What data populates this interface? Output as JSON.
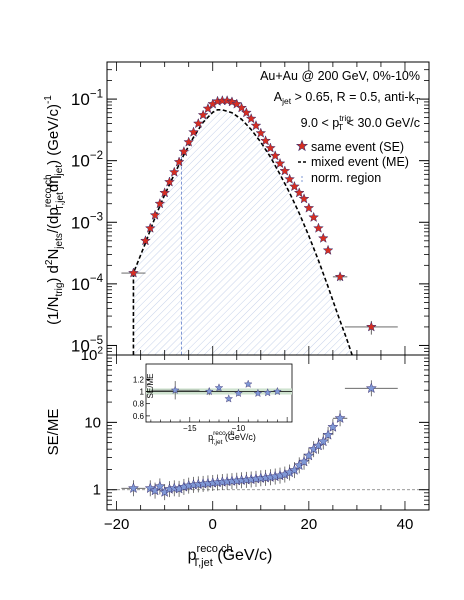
{
  "chart_data": [
    {
      "type": "scatter",
      "panel": "top",
      "yscale": "log",
      "ylim": [
        7e-06,
        0.4
      ],
      "xlim": [
        -22,
        45
      ],
      "ylabel_parts": {
        "p1": "(1/N",
        "p1_sub": "trig",
        "p2": ") d",
        "p2_sup": "2",
        "p3": "N",
        "p3_sub": "jets",
        "p4": "/(dp",
        "p4_sup": "reco,ch",
        "p4_sub": "T,jet",
        "p5": "dη",
        "p5_sub": "jet",
        "p6": ")  (GeV/c)",
        "p6_sup": "-1"
      },
      "yticks": [
        {
          "v": 1e-05,
          "base": "10",
          "exp": "−5"
        },
        {
          "v": 0.0001,
          "base": "10",
          "exp": "−4"
        },
        {
          "v": 0.001,
          "base": "10",
          "exp": "−3"
        },
        {
          "v": 0.01,
          "base": "10",
          "exp": "−2"
        },
        {
          "v": 0.1,
          "base": "10",
          "exp": "−1"
        }
      ],
      "annotations": {
        "line1": "Au+Au @ 200 GeV, 0%-10%",
        "line2_a": "A",
        "line2_a_sub": "jet",
        "line2_b": " > 0.65, R = 0.5, anti-k",
        "line2_b_sub": "T",
        "line3_a": "9.0 < p",
        "line3_a_sup": "trig",
        "line3_a_sub": "T",
        "line3_b": " < 30.0 GeV/c"
      },
      "legend": [
        {
          "label": "same event (SE)",
          "marker": "star-red"
        },
        {
          "label": "mixed event (ME)",
          "marker": "dashed-black"
        },
        {
          "label": "norm. region",
          "marker": "hatch-blue"
        }
      ],
      "norm_region": [
        -17,
        -6.5
      ],
      "se_points": [
        {
          "x": -16.5,
          "y": 0.00015,
          "xerr": 2.5,
          "yerr_rel": 0.12
        },
        {
          "x": -14,
          "y": 0.0005
        },
        {
          "x": -13,
          "y": 0.0008
        },
        {
          "x": -12,
          "y": 0.0013
        },
        {
          "x": -11,
          "y": 0.002
        },
        {
          "x": -10,
          "y": 0.003
        },
        {
          "x": -9,
          "y": 0.0045
        },
        {
          "x": -8,
          "y": 0.0065
        },
        {
          "x": -7,
          "y": 0.0095
        },
        {
          "x": -6,
          "y": 0.014
        },
        {
          "x": -5,
          "y": 0.02
        },
        {
          "x": -4,
          "y": 0.029
        },
        {
          "x": -3,
          "y": 0.04
        },
        {
          "x": -2,
          "y": 0.055
        },
        {
          "x": -1,
          "y": 0.07
        },
        {
          "x": 0,
          "y": 0.083
        },
        {
          "x": 1,
          "y": 0.092
        },
        {
          "x": 2,
          "y": 0.094
        },
        {
          "x": 3,
          "y": 0.094
        },
        {
          "x": 4,
          "y": 0.09
        },
        {
          "x": 5,
          "y": 0.083
        },
        {
          "x": 6,
          "y": 0.072
        },
        {
          "x": 7,
          "y": 0.06
        },
        {
          "x": 8,
          "y": 0.048
        },
        {
          "x": 9,
          "y": 0.037
        },
        {
          "x": 10,
          "y": 0.028
        },
        {
          "x": 11,
          "y": 0.021
        },
        {
          "x": 12,
          "y": 0.016
        },
        {
          "x": 13,
          "y": 0.012
        },
        {
          "x": 14,
          "y": 0.009
        },
        {
          "x": 15,
          "y": 0.0068
        },
        {
          "x": 16,
          "y": 0.005
        },
        {
          "x": 17,
          "y": 0.0038
        },
        {
          "x": 18,
          "y": 0.003
        },
        {
          "x": 19,
          "y": 0.0024
        },
        {
          "x": 20,
          "y": 0.0017
        },
        {
          "x": 21,
          "y": 0.0012
        },
        {
          "x": 22,
          "y": 0.0008
        },
        {
          "x": 23,
          "y": 0.00055
        },
        {
          "x": 24,
          "y": 0.00035
        },
        {
          "x": 26.5,
          "y": 0.00013,
          "xerr": 1.5,
          "yerr_rel": 0.15
        },
        {
          "x": 33,
          "y": 2e-05,
          "xerr": 5.5,
          "yerr_rel": 0.25
        }
      ],
      "me_curve": [
        {
          "x": -16.5,
          "y": 7e-06
        },
        {
          "x": -16.5,
          "y": 0.00015
        },
        {
          "x": -14,
          "y": 0.00046
        },
        {
          "x": -12,
          "y": 0.0012
        },
        {
          "x": -10,
          "y": 0.0028
        },
        {
          "x": -8,
          "y": 0.006
        },
        {
          "x": -6,
          "y": 0.0125
        },
        {
          "x": -4,
          "y": 0.024
        },
        {
          "x": -2,
          "y": 0.042
        },
        {
          "x": 0,
          "y": 0.061
        },
        {
          "x": 1,
          "y": 0.067
        },
        {
          "x": 2,
          "y": 0.067
        },
        {
          "x": 4,
          "y": 0.06
        },
        {
          "x": 6,
          "y": 0.047
        },
        {
          "x": 8,
          "y": 0.032
        },
        {
          "x": 10,
          "y": 0.02
        },
        {
          "x": 12,
          "y": 0.0115
        },
        {
          "x": 14,
          "y": 0.006
        },
        {
          "x": 16,
          "y": 0.003
        },
        {
          "x": 18,
          "y": 0.0014
        },
        {
          "x": 20,
          "y": 0.0006
        },
        {
          "x": 22,
          "y": 0.00024
        },
        {
          "x": 24,
          "y": 9e-05
        },
        {
          "x": 26,
          "y": 3.2e-05
        },
        {
          "x": 28,
          "y": 1.2e-05
        },
        {
          "x": 29,
          "y": 7e-06
        }
      ]
    },
    {
      "type": "scatter",
      "panel": "bottom",
      "yscale": "log",
      "ylim": [
        0.5,
        100
      ],
      "xlim": [
        -22,
        45
      ],
      "ylabel": "SE/ME",
      "xlabel_parts": {
        "p": "p",
        "sup": "reco,ch",
        "sub": "T,jet",
        "unit": " (GeV/c)"
      },
      "xticks": [
        -20,
        0,
        20,
        40
      ],
      "yticks": [
        {
          "v": 1,
          "label": "1"
        },
        {
          "v": 10,
          "label": "10"
        },
        {
          "v": 100,
          "base": "10",
          "exp": "2"
        }
      ],
      "reference_line": 1,
      "ratio_points": [
        {
          "x": -16.5,
          "y": 1.05,
          "xerr": 2.5
        },
        {
          "x": -13,
          "y": 1.05
        },
        {
          "x": -12,
          "y": 0.97
        },
        {
          "x": -11,
          "y": 1.12
        },
        {
          "x": -10,
          "y": 0.92
        },
        {
          "x": -9,
          "y": 1.02
        },
        {
          "x": -8,
          "y": 1.05
        },
        {
          "x": -7,
          "y": 1.03
        },
        {
          "x": -6,
          "y": 1.1
        },
        {
          "x": -5,
          "y": 1.15
        },
        {
          "x": -4,
          "y": 1.18
        },
        {
          "x": -3,
          "y": 1.2
        },
        {
          "x": -2,
          "y": 1.22
        },
        {
          "x": -1,
          "y": 1.24
        },
        {
          "x": 0,
          "y": 1.26
        },
        {
          "x": 1,
          "y": 1.28
        },
        {
          "x": 2,
          "y": 1.3
        },
        {
          "x": 3,
          "y": 1.32
        },
        {
          "x": 4,
          "y": 1.34
        },
        {
          "x": 5,
          "y": 1.36
        },
        {
          "x": 6,
          "y": 1.38
        },
        {
          "x": 7,
          "y": 1.4
        },
        {
          "x": 8,
          "y": 1.42
        },
        {
          "x": 9,
          "y": 1.45
        },
        {
          "x": 10,
          "y": 1.48
        },
        {
          "x": 11,
          "y": 1.5
        },
        {
          "x": 12,
          "y": 1.53
        },
        {
          "x": 13,
          "y": 1.57
        },
        {
          "x": 14,
          "y": 1.62
        },
        {
          "x": 15,
          "y": 1.68
        },
        {
          "x": 16,
          "y": 1.8
        },
        {
          "x": 17,
          "y": 1.95
        },
        {
          "x": 18,
          "y": 2.3
        },
        {
          "x": 19,
          "y": 2.6
        },
        {
          "x": 20,
          "y": 3.2
        },
        {
          "x": 21,
          "y": 4.0
        },
        {
          "x": 22,
          "y": 4.5
        },
        {
          "x": 23,
          "y": 5.2
        },
        {
          "x": 24,
          "y": 6.5
        },
        {
          "x": 25,
          "y": 8.5
        },
        {
          "x": 26.5,
          "y": 11.5,
          "xerr": 1.5
        },
        {
          "x": 33,
          "y": 32,
          "xerr": 5.5
        }
      ]
    },
    {
      "type": "scatter",
      "panel": "inset",
      "yscale": "linear",
      "ylim": [
        0.5,
        1.45
      ],
      "xlim": [
        -19.5,
        -4.5
      ],
      "ylabel": "SE/ME",
      "xlabel_parts": {
        "p": "p",
        "sup": "reco,ch",
        "sub": "T,jet",
        "unit": "  (GeV/c)"
      },
      "xticks": [
        {
          "v": -15,
          "label": "−15"
        },
        {
          "v": -10,
          "label": "−10"
        }
      ],
      "yticks": [
        {
          "v": 0.6,
          "label": "0.6"
        },
        {
          "v": 0.8,
          "label": "0.8"
        },
        {
          "v": 1.0,
          "label": "1"
        },
        {
          "v": 1.2,
          "label": "1.2"
        }
      ],
      "band": [
        0.95,
        1.05
      ],
      "points": [
        {
          "x": -16.5,
          "y": 1.02,
          "xerr": 2.5,
          "yerr": 0.15
        },
        {
          "x": -13,
          "y": 1.0,
          "yerr": 0.06
        },
        {
          "x": -12,
          "y": 1.06,
          "yerr": 0.05
        },
        {
          "x": -11,
          "y": 0.88,
          "yerr": 0.04
        },
        {
          "x": -10,
          "y": 0.97,
          "yerr": 0.04
        },
        {
          "x": -9,
          "y": 1.12,
          "yerr": 0.04
        },
        {
          "x": -8,
          "y": 0.97,
          "yerr": 0.03
        },
        {
          "x": -7,
          "y": 0.98,
          "yerr": 0.03
        },
        {
          "x": -6,
          "y": 1.0,
          "yerr": 0.03
        }
      ]
    }
  ],
  "colors": {
    "se_marker": "#d62e22",
    "ratio_marker": "#7f98d6",
    "marker_edge": "#3a2f6e",
    "hatch": "#c6d2ea",
    "band": "#cfe3d0"
  }
}
